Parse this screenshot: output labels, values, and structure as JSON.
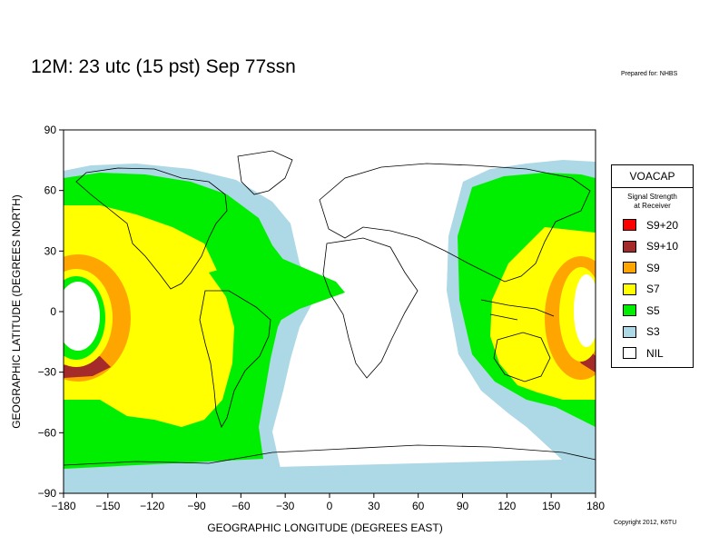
{
  "header": {
    "title": "12M:  23 utc (15 pst) Sep 77ssn",
    "prepared_for": "Prepared for: NHBS"
  },
  "footer": {
    "copyright": "Copyright 2012, K6TU"
  },
  "axes": {
    "xlabel": "GEOGRAPHIC LONGITUDE (DEGREES EAST)",
    "ylabel": "GEOGRAPHIC LATITUDE (DEGREES NORTH)",
    "x_ticks": [
      "−180",
      "−150",
      "−120",
      "−90",
      "−60",
      "−30",
      "0",
      "30",
      "60",
      "90",
      "120",
      "150",
      "180"
    ],
    "y_ticks": [
      "90",
      "60",
      "30",
      "0",
      "−30",
      "−60",
      "−90"
    ],
    "x_range": [
      -180,
      180
    ],
    "y_range": [
      -90,
      90
    ]
  },
  "legend": {
    "title": "VOACAP",
    "subtitle_line1": "Signal Strength",
    "subtitle_line2": "at Receiver",
    "items": [
      {
        "label": "S9+20",
        "color": "#ff0000"
      },
      {
        "label": "S9+10",
        "color": "#a52a2a"
      },
      {
        "label": "S9",
        "color": "#ffa500"
      },
      {
        "label": "S7",
        "color": "#ffff00"
      },
      {
        "label": "S5",
        "color": "#00ee00"
      },
      {
        "label": "S3",
        "color": "#add8e6"
      },
      {
        "label": "NIL",
        "color": "#ffffff"
      }
    ]
  }
}
